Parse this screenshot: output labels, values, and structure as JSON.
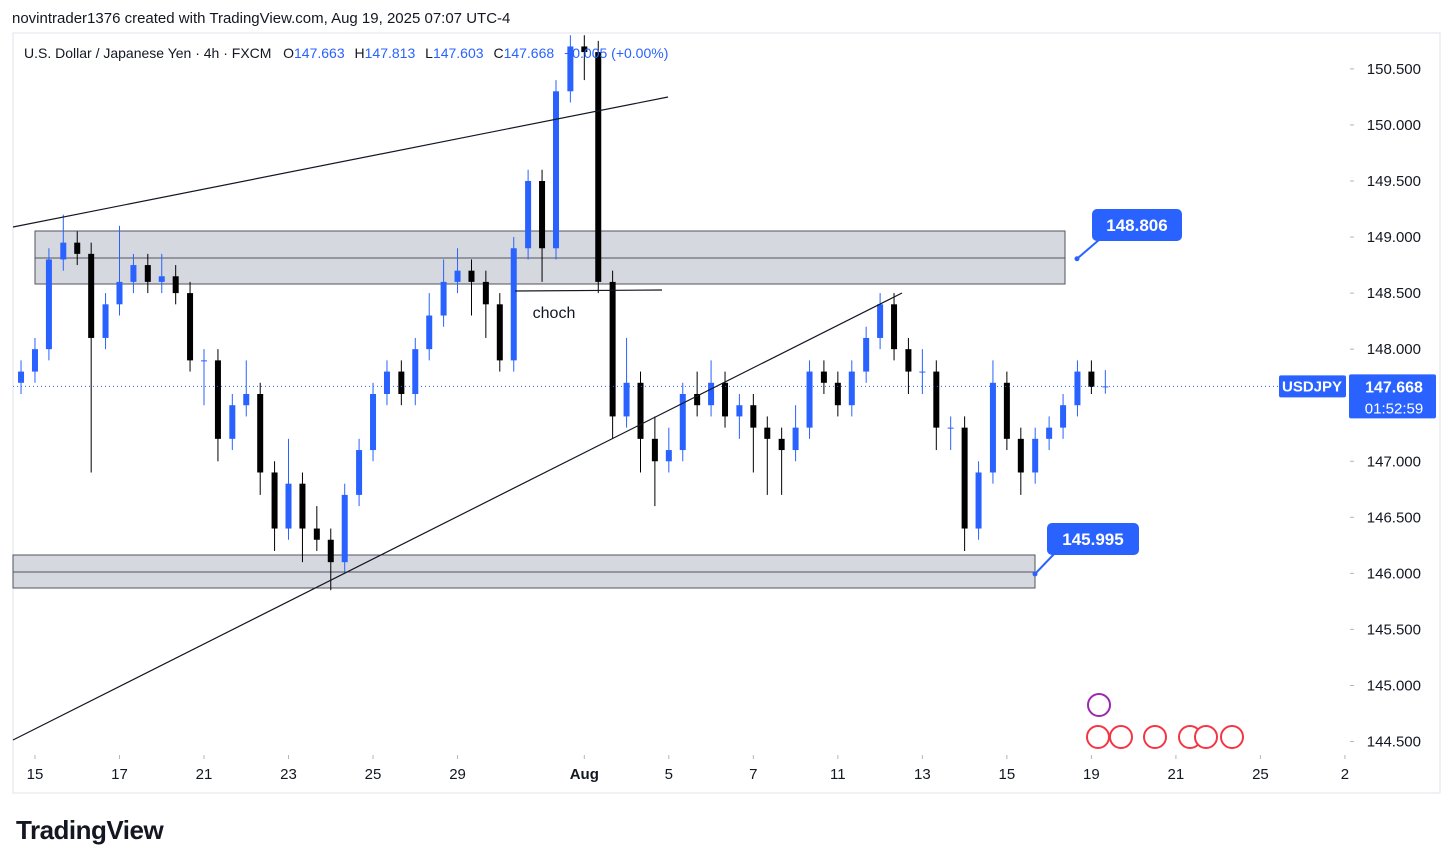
{
  "header": {
    "credit": "novintrader1376 created with TradingView.com, Aug 19, 2025 07:07 UTC-4",
    "symbol": "U.S. Dollar / Japanese Yen · 4h · FXCM",
    "change": "+0.005 (+0.00%)",
    "ticker": "USDJPY",
    "countdown": "01:52:59"
  },
  "footer": {
    "brand": "TradingView"
  },
  "chart_data": {
    "type": "candlestick",
    "ohlc_prefixes": [
      "O",
      "H",
      "L",
      "C"
    ],
    "up_color": "#2962ff",
    "down_color": "#000000",
    "xlim": [
      -0.52,
      31.12
    ],
    "ylim": [
      144.38,
      150.82
    ],
    "xticks": [
      {
        "value": 0,
        "label": "15"
      },
      {
        "value": 2,
        "label": "17"
      },
      {
        "value": 4,
        "label": "21"
      },
      {
        "value": 6,
        "label": "23"
      },
      {
        "value": 8,
        "label": "25"
      },
      {
        "value": 10,
        "label": "29"
      },
      {
        "value": 13,
        "label": "Aug"
      },
      {
        "value": 15,
        "label": "5"
      },
      {
        "value": 17,
        "label": "7"
      },
      {
        "value": 19,
        "label": "11"
      },
      {
        "value": 21,
        "label": "13"
      },
      {
        "value": 23,
        "label": "15"
      },
      {
        "value": 25,
        "label": "19"
      },
      {
        "value": 27,
        "label": "21"
      },
      {
        "value": 29,
        "label": "25"
      },
      {
        "value": 31,
        "label": "2"
      }
    ],
    "yticks": [
      {
        "value": 144.5,
        "label": "144.500"
      },
      {
        "value": 145,
        "label": "145.000"
      },
      {
        "value": 145.5,
        "label": "145.500"
      },
      {
        "value": 146,
        "label": "146.000"
      },
      {
        "value": 146.5,
        "label": "146.500"
      },
      {
        "value": 147,
        "label": "147.000"
      },
      {
        "value": 147.5,
        "label": "147.500"
      },
      {
        "value": 148,
        "label": "148.000"
      },
      {
        "value": 148.5,
        "label": "148.500"
      },
      {
        "value": 149,
        "label": "149.000"
      },
      {
        "value": 149.5,
        "label": "149.500"
      },
      {
        "value": 150,
        "label": "150.000"
      },
      {
        "value": 150.5,
        "label": "150.500"
      }
    ],
    "annotations": [
      {
        "value": 148.806,
        "label": "148.806"
      },
      {
        "value": 145.995,
        "label": "145.995"
      }
    ],
    "note": "choch",
    "x": [
      -0.33,
      0,
      0.33,
      0.67,
      1,
      1.33,
      1.67,
      2,
      2.33,
      2.67,
      3,
      3.33,
      3.67,
      4,
      4.33,
      4.67,
      5,
      5.33,
      5.67,
      6,
      6.33,
      6.67,
      7,
      7.33,
      7.67,
      8,
      8.33,
      8.67,
      9,
      9.33,
      9.67,
      10,
      10.33,
      10.67,
      11,
      11.33,
      11.67,
      12,
      12.33,
      12.67,
      13,
      13.33,
      13.67,
      14,
      14.33,
      14.67,
      15,
      15.33,
      15.67,
      16,
      16.33,
      16.67,
      17,
      17.33,
      17.67,
      18,
      18.33,
      18.67,
      19,
      19.33,
      19.67,
      20,
      20.33,
      20.67,
      21,
      21.33,
      21.67,
      22,
      22.33,
      22.67,
      23,
      23.33,
      23.67,
      24,
      24.33,
      24.67,
      25,
      25.33
    ],
    "open": [
      147.7,
      147.8,
      148.0,
      148.8,
      148.95,
      148.85,
      148.1,
      148.4,
      148.6,
      148.75,
      148.6,
      148.65,
      148.5,
      147.9,
      147.9,
      147.2,
      147.5,
      147.6,
      146.9,
      146.4,
      146.8,
      146.4,
      146.3,
      146.1,
      146.7,
      147.1,
      147.6,
      147.8,
      147.6,
      148.0,
      148.3,
      148.6,
      148.7,
      148.6,
      148.4,
      147.9,
      148.9,
      149.5,
      148.9,
      150.3,
      150.7,
      150.65,
      148.6,
      147.4,
      147.7,
      147.2,
      147.0,
      147.1,
      147.6,
      147.5,
      147.7,
      147.4,
      147.5,
      147.3,
      147.2,
      147.1,
      147.3,
      147.8,
      147.7,
      147.5,
      147.8,
      148.1,
      148.4,
      148.0,
      147.8,
      147.8,
      147.3,
      147.3,
      146.4,
      146.9,
      147.7,
      147.2,
      146.9,
      147.2,
      147.3,
      147.5,
      147.8,
      147.663
    ],
    "high": [
      147.9,
      148.1,
      148.9,
      149.2,
      149.05,
      148.95,
      148.5,
      149.1,
      148.85,
      148.85,
      148.85,
      148.75,
      148.6,
      148.0,
      148.0,
      147.6,
      147.9,
      147.7,
      147.0,
      147.2,
      146.9,
      146.6,
      146.4,
      146.8,
      147.2,
      147.7,
      147.9,
      147.9,
      148.1,
      148.5,
      148.8,
      148.9,
      148.8,
      148.7,
      148.5,
      149.0,
      149.6,
      149.6,
      150.4,
      150.8,
      150.8,
      150.75,
      148.7,
      148.1,
      147.8,
      147.4,
      147.3,
      147.7,
      147.8,
      147.9,
      147.8,
      147.6,
      147.6,
      147.4,
      147.3,
      147.5,
      147.9,
      147.9,
      147.8,
      147.9,
      148.2,
      148.5,
      148.5,
      148.1,
      148.0,
      147.9,
      147.4,
      147.4,
      147.0,
      147.9,
      147.8,
      147.3,
      147.3,
      147.4,
      147.6,
      147.9,
      147.9,
      147.813
    ],
    "low": [
      147.6,
      147.7,
      147.9,
      148.7,
      148.75,
      146.9,
      148.0,
      148.3,
      148.5,
      148.5,
      148.5,
      148.4,
      147.8,
      147.5,
      147.0,
      147.1,
      147.4,
      146.7,
      146.2,
      146.3,
      146.1,
      146.2,
      145.85,
      146.0,
      146.6,
      147.0,
      147.5,
      147.5,
      147.5,
      147.9,
      148.2,
      148.5,
      148.3,
      148.1,
      147.8,
      147.8,
      148.8,
      148.6,
      148.8,
      150.2,
      150.4,
      148.5,
      147.2,
      147.3,
      146.9,
      146.6,
      146.9,
      147.0,
      147.4,
      147.4,
      147.3,
      147.2,
      146.9,
      146.7,
      146.7,
      147.0,
      147.2,
      147.6,
      147.4,
      147.4,
      147.7,
      148.0,
      147.9,
      147.6,
      147.6,
      147.1,
      147.1,
      146.2,
      146.3,
      146.8,
      147.1,
      146.7,
      146.8,
      147.1,
      147.2,
      147.4,
      147.6,
      147.603
    ],
    "close": [
      147.8,
      148.0,
      148.8,
      148.95,
      148.85,
      148.1,
      148.4,
      148.6,
      148.75,
      148.6,
      148.65,
      148.5,
      147.9,
      147.9,
      147.2,
      147.5,
      147.6,
      146.9,
      146.4,
      146.8,
      146.4,
      146.3,
      146.1,
      146.7,
      147.1,
      147.6,
      147.8,
      147.6,
      148.0,
      148.3,
      148.6,
      148.7,
      148.6,
      148.4,
      147.9,
      148.9,
      149.5,
      148.9,
      150.3,
      150.7,
      150.65,
      148.6,
      147.4,
      147.7,
      147.2,
      147.0,
      147.1,
      147.6,
      147.5,
      147.7,
      147.4,
      147.5,
      147.3,
      147.2,
      147.1,
      147.3,
      147.8,
      147.7,
      147.5,
      147.8,
      148.1,
      148.4,
      148.0,
      147.8,
      147.8,
      147.3,
      147.3,
      146.4,
      146.9,
      147.7,
      147.2,
      146.9,
      147.2,
      147.3,
      147.5,
      147.8,
      147.663,
      147.668
    ]
  }
}
